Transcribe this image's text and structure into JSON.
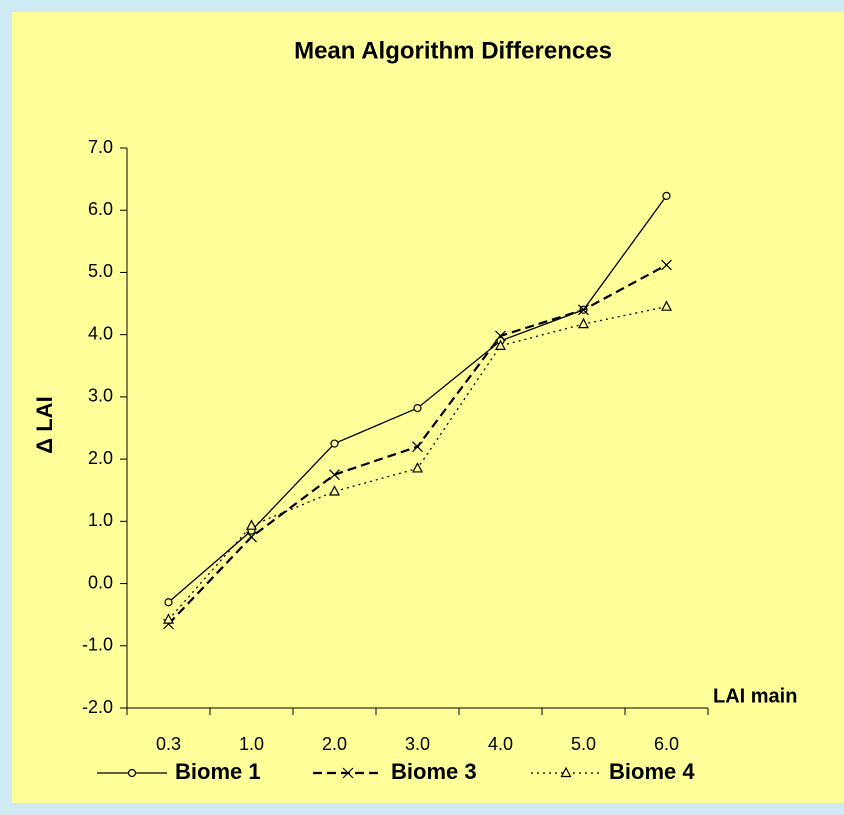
{
  "chart_data": {
    "type": "line",
    "title": "Mean Algorithm Differences",
    "ylabel": "Δ LAI",
    "xlabel": "LAI main",
    "categories": [
      "0.3",
      "1.0",
      "2.0",
      "3.0",
      "4.0",
      "5.0",
      "6.0"
    ],
    "series": [
      {
        "name": "Biome 1",
        "color": "#000000",
        "style": "solid",
        "marker": "circle",
        "values": [
          -0.3,
          0.85,
          2.25,
          2.82,
          3.9,
          4.4,
          6.23
        ]
      },
      {
        "name": "Biome 3",
        "color": "#000000",
        "style": "dashed",
        "marker": "x",
        "values": [
          -0.65,
          0.75,
          1.75,
          2.2,
          3.98,
          4.4,
          5.12
        ]
      },
      {
        "name": "Biome 4",
        "color": "#000000",
        "style": "dotted",
        "marker": "triangle",
        "values": [
          -0.58,
          0.93,
          1.48,
          1.85,
          3.82,
          4.17,
          4.45
        ]
      }
    ],
    "ylim": [
      -2,
      7
    ],
    "yticks": [
      {
        "value": -2,
        "label": "-2.0"
      },
      {
        "value": -1,
        "label": "-1.0"
      },
      {
        "value": 0,
        "label": "0.0"
      },
      {
        "value": 1,
        "label": "1.0"
      },
      {
        "value": 2,
        "label": "2.0"
      },
      {
        "value": 3,
        "label": "3.0"
      },
      {
        "value": 4,
        "label": "4.0"
      },
      {
        "value": 5,
        "label": "5.0"
      },
      {
        "value": 6,
        "label": "6.0"
      },
      {
        "value": 7,
        "label": "7.0"
      }
    ],
    "grid": false,
    "legend": "bottom"
  }
}
